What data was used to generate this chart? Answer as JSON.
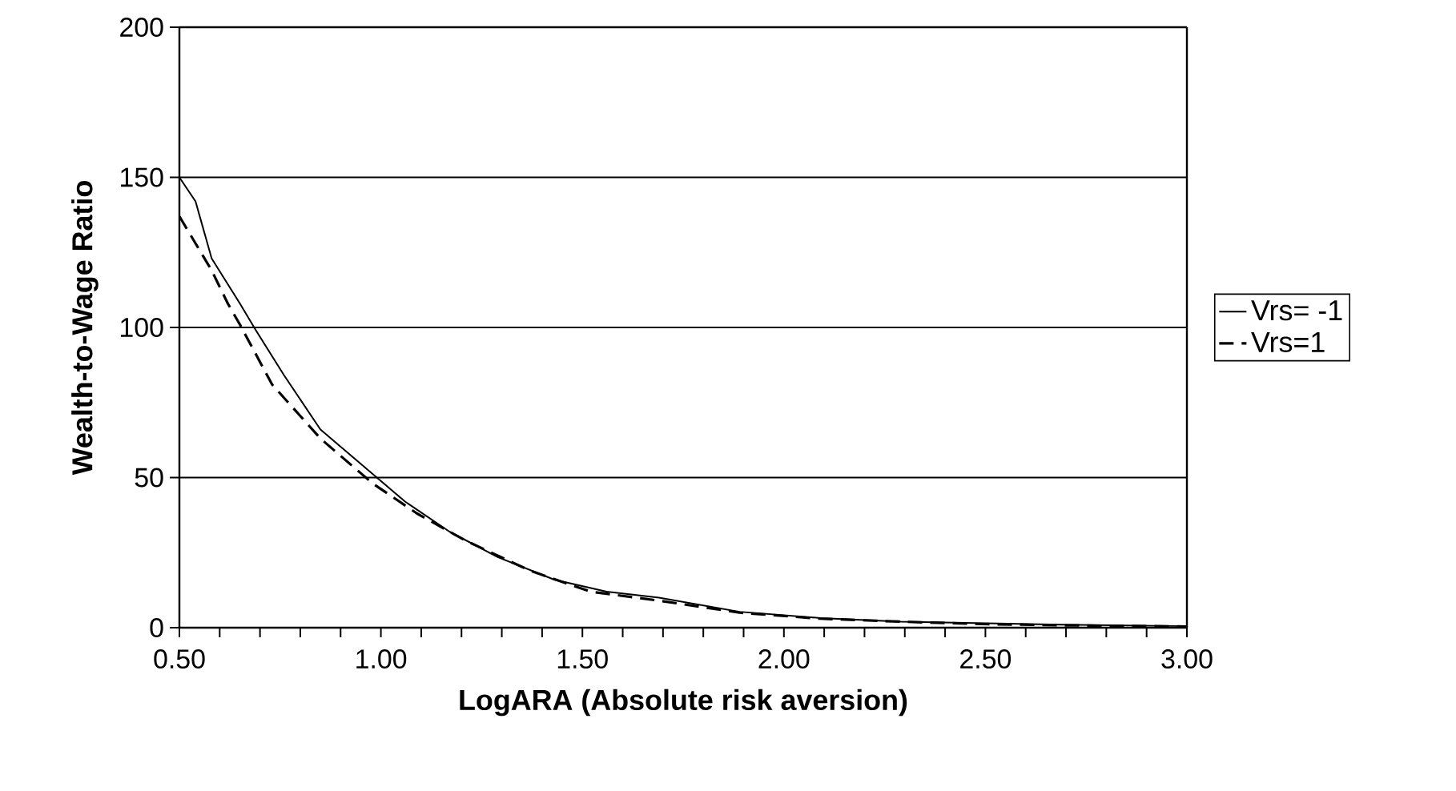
{
  "chart_data": {
    "type": "line",
    "xlabel": "LogARA (Absolute risk aversion)",
    "ylabel": "Wealth-to-Wage Ratio",
    "xlim": [
      0.5,
      3.0
    ],
    "ylim": [
      0,
      200
    ],
    "xticks": [
      {
        "value": 0.5,
        "label": "0.50"
      },
      {
        "value": 1.0,
        "label": "1.00"
      },
      {
        "value": 1.5,
        "label": "1.50"
      },
      {
        "value": 2.0,
        "label": "2.00"
      },
      {
        "value": 2.5,
        "label": "2.50"
      },
      {
        "value": 3.0,
        "label": "3.00"
      }
    ],
    "yticks": [
      0,
      50,
      100,
      150,
      200
    ],
    "grid": "y",
    "legend": "right",
    "marker": "none",
    "series": [
      {
        "name": "Vrs= -1",
        "color": "#000000",
        "line_style": "solid",
        "x": [
          0.5,
          0.54,
          0.58,
          0.65,
          0.69,
          0.76,
          0.85,
          0.99,
          1.06,
          1.17,
          1.29,
          1.43,
          1.56,
          1.69,
          1.89,
          2.09,
          2.29,
          2.49,
          2.69,
          3.0
        ],
        "values": [
          150,
          142,
          123,
          108,
          99,
          84,
          66,
          50,
          42,
          32,
          23.5,
          16,
          12,
          10,
          5.3,
          3.2,
          2,
          1.5,
          1,
          0.5
        ]
      },
      {
        "name": "Vrs=1",
        "color": "#000000",
        "line_style": "dashed",
        "x": [
          0.5,
          0.54,
          0.58,
          0.62,
          0.65,
          0.73,
          0.85,
          0.98,
          1.09,
          1.21,
          1.37,
          1.52,
          1.69,
          1.89,
          2.09,
          2.29,
          2.49,
          2.69,
          3.0
        ],
        "values": [
          137,
          128,
          119,
          108,
          101,
          81,
          63,
          48,
          38,
          29,
          19,
          12,
          9,
          5,
          3,
          2,
          1.2,
          0.8,
          0.4
        ]
      }
    ]
  }
}
